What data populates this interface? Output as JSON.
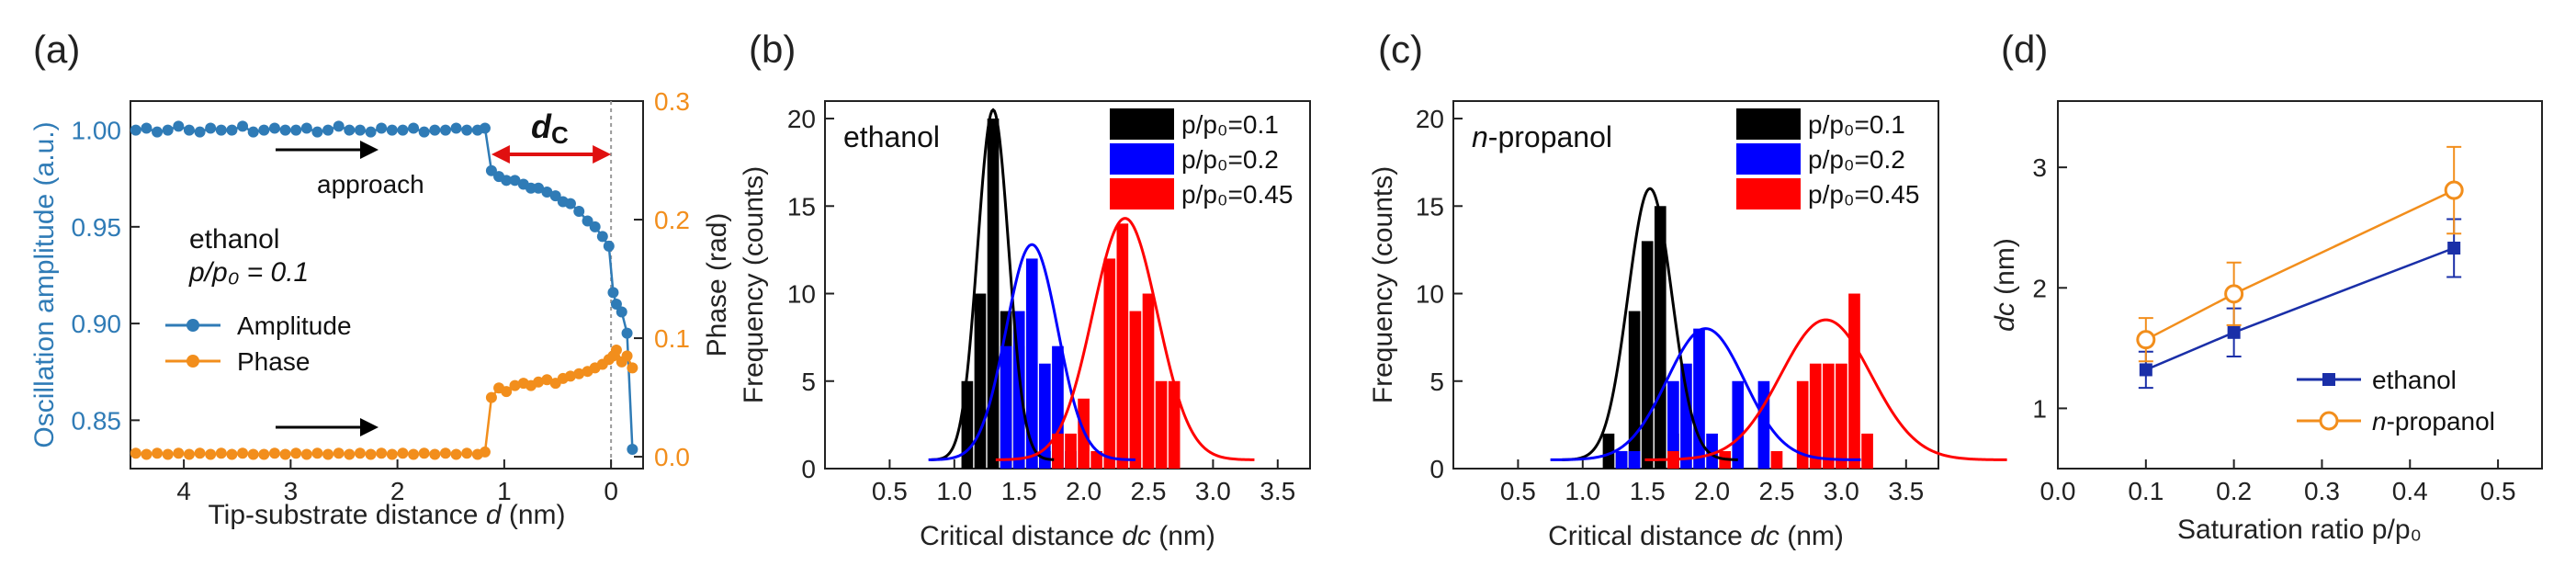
{
  "colors": {
    "amplitude": "#2f7bb6",
    "phase": "#f28e1c",
    "black": "#000000",
    "blue": "#0000ff",
    "red": "#ff0000",
    "arrow_red": "#e01010",
    "ethanol_d": "#1a2fa8",
    "propanol_d": "#f28e1c",
    "axis": "#222222"
  },
  "panel_letters": [
    "(a)",
    "(b)",
    "(c)",
    "(d)"
  ],
  "chart_data": [
    {
      "id": "a",
      "type": "line",
      "xlabel_prefix": "Tip-substrate distance ",
      "xlabel_var": "d",
      "xlabel_suffix": " (nm)",
      "ylabel": "Oscillation amplitude (a.u.)",
      "ylabel_right": "Phase (rad)",
      "xlim": [
        4.5,
        -0.3
      ],
      "ylim": [
        0.825,
        1.015
      ],
      "ylim_right": [
        -0.01,
        0.3
      ],
      "xticks": [
        4,
        3,
        2,
        1,
        0
      ],
      "yticks": [
        0.85,
        0.9,
        0.95,
        1.0
      ],
      "ytick_labels": [
        "0.85",
        "0.90",
        "0.95",
        "1.00"
      ],
      "yticks_right": [
        0.0,
        0.1,
        0.2,
        0.3
      ],
      "ytick_right_labels": [
        "0.0",
        "0.1",
        "0.2",
        "0.3"
      ],
      "annotation_approach": "approach",
      "annotation_dc": "dc",
      "annotation_dc_main": "d",
      "annotation_dc_sub": "C",
      "annotation_solvent": "ethanol",
      "annotation_condition": "p/p₀ = 0.1",
      "legend": [
        "Amplitude",
        "Phase"
      ],
      "series": [
        {
          "name": "Amplitude",
          "axis": "left",
          "x": [
            4.45,
            4.35,
            4.25,
            4.15,
            4.05,
            3.95,
            3.85,
            3.75,
            3.65,
            3.55,
            3.45,
            3.35,
            3.25,
            3.15,
            3.05,
            2.95,
            2.85,
            2.75,
            2.65,
            2.55,
            2.45,
            2.35,
            2.25,
            2.15,
            2.05,
            1.95,
            1.85,
            1.75,
            1.65,
            1.55,
            1.45,
            1.35,
            1.25,
            1.18,
            1.12,
            1.05,
            0.98,
            0.9,
            0.82,
            0.75,
            0.68,
            0.6,
            0.52,
            0.45,
            0.38,
            0.3,
            0.22,
            0.15,
            0.08,
            0.02,
            -0.02,
            -0.05,
            -0.1,
            -0.15,
            -0.2
          ],
          "y": [
            1.0,
            1.001,
            0.999,
            1.0,
            1.002,
            1.0,
            0.999,
            1.001,
            1.0,
            1.0,
            1.002,
            0.999,
            1.0,
            1.001,
            1.0,
            1.0,
            1.001,
            0.999,
            1.0,
            1.002,
            1.0,
            1.0,
            0.999,
            1.001,
            1.0,
            1.0,
            1.001,
            0.999,
            1.0,
            1.0,
            1.001,
            1.0,
            1.0,
            1.001,
            0.979,
            0.976,
            0.974,
            0.974,
            0.972,
            0.97,
            0.97,
            0.968,
            0.966,
            0.963,
            0.962,
            0.958,
            0.953,
            0.95,
            0.945,
            0.94,
            0.916,
            0.91,
            0.906,
            0.895,
            0.835
          ]
        },
        {
          "name": "Phase",
          "axis": "right",
          "x": [
            4.45,
            4.35,
            4.25,
            4.15,
            4.05,
            3.95,
            3.85,
            3.75,
            3.65,
            3.55,
            3.45,
            3.35,
            3.25,
            3.15,
            3.05,
            2.95,
            2.85,
            2.75,
            2.65,
            2.55,
            2.45,
            2.35,
            2.25,
            2.15,
            2.05,
            1.95,
            1.85,
            1.75,
            1.65,
            1.55,
            1.45,
            1.35,
            1.25,
            1.18,
            1.12,
            1.05,
            0.98,
            0.9,
            0.82,
            0.75,
            0.68,
            0.6,
            0.52,
            0.45,
            0.38,
            0.3,
            0.22,
            0.15,
            0.08,
            0.02,
            -0.02,
            -0.05,
            -0.1,
            -0.15,
            -0.2
          ],
          "y": [
            0.003,
            0.002,
            0.003,
            0.002,
            0.003,
            0.002,
            0.003,
            0.002,
            0.003,
            0.002,
            0.003,
            0.002,
            0.002,
            0.003,
            0.002,
            0.003,
            0.002,
            0.003,
            0.002,
            0.003,
            0.002,
            0.003,
            0.002,
            0.003,
            0.002,
            0.003,
            0.002,
            0.003,
            0.002,
            0.003,
            0.002,
            0.003,
            0.002,
            0.004,
            0.05,
            0.058,
            0.055,
            0.06,
            0.062,
            0.06,
            0.063,
            0.065,
            0.062,
            0.066,
            0.068,
            0.07,
            0.072,
            0.075,
            0.078,
            0.082,
            0.085,
            0.09,
            0.08,
            0.085,
            0.075
          ]
        }
      ]
    },
    {
      "id": "b",
      "type": "bar",
      "xlabel_prefix": "Critical distance ",
      "xlabel_var": "dc",
      "xlabel_suffix": " (nm)",
      "ylabel": "Frequency (counts)",
      "xlim": [
        0.0,
        3.75
      ],
      "ylim": [
        0,
        21
      ],
      "xticks": [
        0.5,
        1.0,
        1.5,
        2.0,
        2.5,
        3.0,
        3.5
      ],
      "xtick_labels": [
        "0.5",
        "1.0",
        "1.5",
        "2.0",
        "2.5",
        "3.0",
        "3.5"
      ],
      "yticks": [
        0,
        5,
        10,
        15,
        20
      ],
      "ytick_labels": [
        "0",
        "5",
        "10",
        "15",
        "20"
      ],
      "bar_width": 0.09,
      "annotation": "ethanol",
      "annotation_italic": false,
      "legend": [
        "p/p₀=0.1",
        "p/p₀=0.2",
        "p/p₀=0.45"
      ],
      "series": [
        {
          "name": "p/p₀=0.1",
          "color": "black",
          "x": [
            1.1,
            1.2,
            1.3,
            1.4,
            1.5,
            1.6,
            1.7
          ],
          "values": [
            5,
            10,
            20,
            9,
            7,
            1,
            1
          ],
          "fit": {
            "mu": 1.3,
            "sigma": 0.12,
            "amp": 20
          }
        },
        {
          "name": "p/p₀=0.2",
          "color": "blue",
          "x": [
            1.4,
            1.5,
            1.6,
            1.7,
            1.8,
            1.9
          ],
          "values": [
            7,
            9,
            12,
            6,
            7,
            1
          ],
          "fit": {
            "mu": 1.6,
            "sigma": 0.2,
            "amp": 12.3
          }
        },
        {
          "name": "p/p₀=0.45",
          "color": "red",
          "x": [
            1.8,
            1.9,
            2.0,
            2.1,
            2.2,
            2.3,
            2.4,
            2.5,
            2.6,
            2.7
          ],
          "values": [
            2,
            2,
            4,
            1,
            12,
            14,
            9,
            10,
            5,
            5
          ],
          "fit": {
            "mu": 2.32,
            "sigma": 0.25,
            "amp": 13.8
          }
        }
      ]
    },
    {
      "id": "c",
      "type": "bar",
      "xlabel_prefix": "Critical distance ",
      "xlabel_var": "dc",
      "xlabel_suffix": " (nm)",
      "ylabel": "Frequency (counts)",
      "xlim": [
        0.0,
        3.75
      ],
      "ylim": [
        0,
        21
      ],
      "xticks": [
        0.5,
        1.0,
        1.5,
        2.0,
        2.5,
        3.0,
        3.5
      ],
      "xtick_labels": [
        "0.5",
        "1.0",
        "1.5",
        "2.0",
        "2.5",
        "3.0",
        "3.5"
      ],
      "yticks": [
        0,
        5,
        10,
        15,
        20
      ],
      "ytick_labels": [
        "0",
        "5",
        "10",
        "15",
        "20"
      ],
      "bar_width": 0.09,
      "annotation_prefix": "n",
      "annotation": "-propanol",
      "legend": [
        "p/p₀=0.1",
        "p/p₀=0.2",
        "p/p₀=0.45"
      ],
      "series": [
        {
          "name": "p/p₀=0.1",
          "color": "black",
          "x": [
            1.2,
            1.3,
            1.4,
            1.5,
            1.6,
            1.7,
            1.8
          ],
          "values": [
            2,
            1,
            9,
            13,
            15,
            2,
            0
          ],
          "fit": {
            "mu": 1.52,
            "sigma": 0.17,
            "amp": 15.5
          }
        },
        {
          "name": "p/p₀=0.2",
          "color": "blue",
          "x": [
            1.3,
            1.4,
            1.7,
            1.8,
            1.9,
            2.0,
            2.2,
            2.4
          ],
          "values": [
            1,
            1,
            5,
            6,
            8,
            2,
            5,
            5
          ],
          "fit": {
            "mu": 1.95,
            "sigma": 0.3,
            "amp": 7.5
          }
        },
        {
          "name": "p/p₀=0.45",
          "color": "red",
          "x": [
            1.7,
            2.1,
            2.5,
            2.7,
            2.8,
            2.9,
            3.0,
            3.1,
            3.2,
            3.3
          ],
          "values": [
            1,
            1,
            1,
            5,
            6,
            6,
            6,
            10,
            2,
            0
          ],
          "fit": {
            "mu": 2.88,
            "sigma": 0.35,
            "amp": 8.0
          }
        }
      ]
    },
    {
      "id": "d",
      "type": "scatter",
      "xlabel": "Saturation ratio p/p₀",
      "ylabel_var": "dc",
      "ylabel_suffix": " (nm)",
      "xlim": [
        0.0,
        0.55
      ],
      "ylim": [
        0.5,
        3.55
      ],
      "xticks": [
        0.0,
        0.1,
        0.2,
        0.3,
        0.4,
        0.5
      ],
      "xtick_labels": [
        "0.0",
        "0.1",
        "0.2",
        "0.3",
        "0.4",
        "0.5"
      ],
      "yticks": [
        1,
        2,
        3
      ],
      "ytick_labels": [
        "1",
        "2",
        "3"
      ],
      "legend_ethanol": "ethanol",
      "legend_propanol_prefix": "n",
      "legend_propanol": "-propanol",
      "series": [
        {
          "name": "ethanol",
          "x": [
            0.1,
            0.2,
            0.45
          ],
          "y": [
            1.32,
            1.63,
            2.33
          ],
          "err": [
            0.15,
            0.2,
            0.24
          ]
        },
        {
          "name": "n-propanol",
          "x": [
            0.1,
            0.2,
            0.45
          ],
          "y": [
            1.57,
            1.95,
            2.81
          ],
          "err": [
            0.18,
            0.26,
            0.36
          ]
        }
      ]
    }
  ]
}
